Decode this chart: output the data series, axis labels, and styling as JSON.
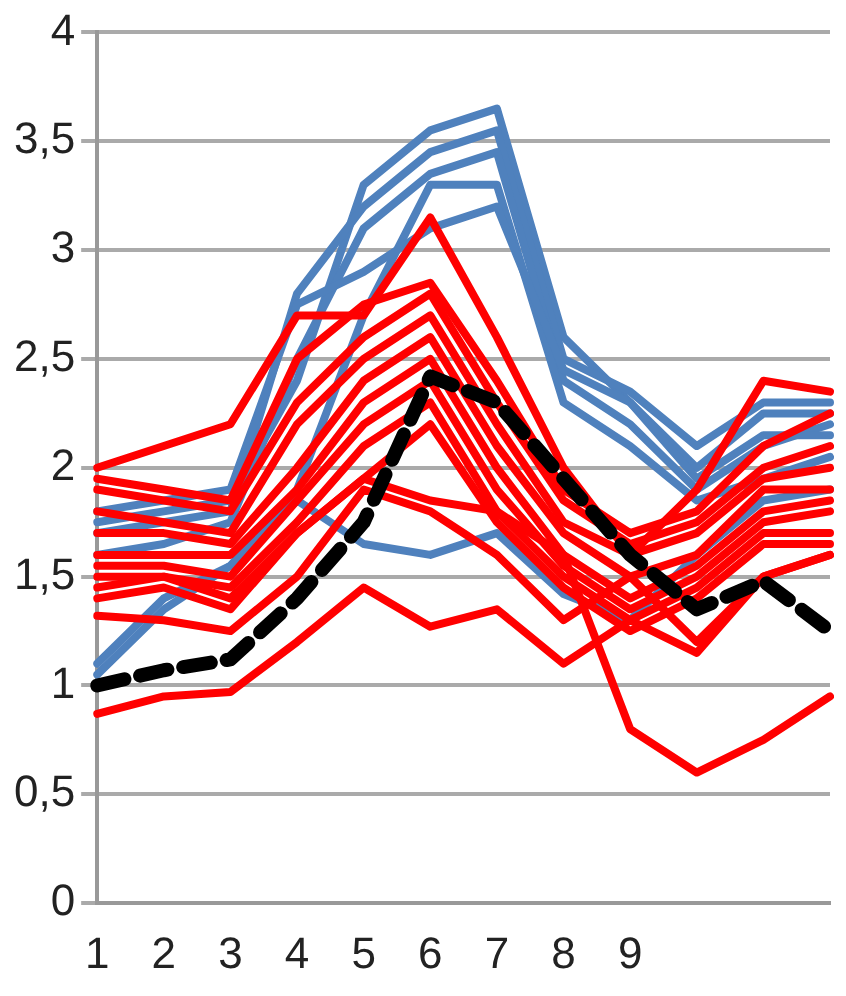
{
  "chart_data": {
    "type": "line",
    "categories": [
      "1",
      "2",
      "3",
      "4",
      "5",
      "6",
      "7",
      "8",
      "9",
      null,
      null,
      null
    ],
    "ylim": [
      0,
      4
    ],
    "yticks": [
      0,
      {
        "value": 0.5,
        "label": "0,5"
      },
      1,
      {
        "value": 1.5,
        "label": "1,5"
      },
      2,
      {
        "value": 2.5,
        "label": "2,5"
      },
      3,
      {
        "value": 3.5,
        "label": "3,5"
      },
      4
    ],
    "grid": "y",
    "legend": false,
    "marker": "none",
    "series": [
      {
        "color": "#4f81bd",
        "values": [
          1.75,
          1.8,
          1.85,
          2.4,
          3.3,
          3.55,
          3.65,
          2.6,
          2.3,
          2.0,
          2.25,
          2.25
        ]
      },
      {
        "color": "#4f81bd",
        "values": [
          1.7,
          1.75,
          1.8,
          2.8,
          3.2,
          3.45,
          3.55,
          2.5,
          2.35,
          2.1,
          2.3,
          2.3
        ]
      },
      {
        "color": "#4f81bd",
        "values": [
          1.6,
          1.65,
          1.75,
          2.5,
          3.1,
          3.35,
          3.45,
          2.4,
          2.2,
          1.9,
          2.1,
          2.2
        ]
      },
      {
        "color": "#4f81bd",
        "values": [
          1.05,
          1.35,
          1.55,
          1.9,
          2.7,
          3.3,
          3.3,
          2.3,
          2.1,
          1.85,
          1.95,
          2.05
        ]
      },
      {
        "color": "#4f81bd",
        "values": [
          1.1,
          1.4,
          1.55,
          1.85,
          1.65,
          1.6,
          1.7,
          1.42,
          1.3,
          1.6,
          1.85,
          1.9
        ]
      },
      {
        "color": "#4f81bd",
        "values": [
          1.8,
          1.85,
          1.9,
          2.75,
          2.9,
          3.1,
          3.2,
          2.45,
          2.3,
          1.95,
          2.15,
          2.15
        ]
      },
      {
        "color": "#ff0000",
        "values": [
          2.0,
          2.1,
          2.2,
          2.7,
          2.7,
          3.15,
          2.6,
          2.0,
          1.6,
          1.9,
          2.4,
          2.35
        ]
      },
      {
        "color": "#ff0000",
        "values": [
          1.95,
          1.9,
          1.85,
          2.5,
          2.75,
          2.85,
          2.4,
          1.9,
          1.7,
          1.8,
          2.1,
          2.25
        ]
      },
      {
        "color": "#ff0000",
        "values": [
          1.9,
          1.85,
          1.8,
          2.3,
          2.6,
          2.8,
          2.3,
          1.85,
          1.65,
          1.75,
          2.0,
          2.1
        ]
      },
      {
        "color": "#ff0000",
        "values": [
          1.8,
          1.75,
          1.7,
          2.2,
          2.5,
          2.7,
          2.2,
          1.75,
          1.6,
          1.7,
          1.95,
          2.0
        ]
      },
      {
        "color": "#ff0000",
        "values": [
          1.7,
          1.7,
          1.65,
          2.0,
          2.4,
          2.6,
          2.1,
          1.7,
          1.5,
          1.6,
          1.9,
          1.9
        ]
      },
      {
        "color": "#ff0000",
        "values": [
          1.6,
          1.6,
          1.6,
          1.9,
          2.3,
          2.5,
          2.0,
          1.6,
          1.4,
          1.55,
          1.8,
          1.85
        ]
      },
      {
        "color": "#ff0000",
        "values": [
          1.55,
          1.55,
          1.5,
          1.85,
          2.2,
          2.4,
          1.9,
          1.55,
          1.35,
          1.5,
          1.75,
          1.8
        ]
      },
      {
        "color": "#ff0000",
        "values": [
          1.5,
          1.5,
          1.45,
          1.75,
          2.1,
          2.3,
          1.8,
          1.5,
          1.3,
          1.45,
          1.7,
          1.7
        ]
      },
      {
        "color": "#ff0000",
        "values": [
          1.45,
          1.5,
          1.4,
          1.7,
          1.95,
          2.2,
          1.75,
          1.45,
          1.25,
          1.4,
          1.65,
          1.65
        ]
      },
      {
        "color": "#ff0000",
        "values": [
          1.4,
          1.45,
          1.35,
          1.7,
          1.95,
          1.85,
          1.8,
          1.6,
          0.8,
          0.6,
          0.75,
          0.95
        ]
      },
      {
        "color": "#ff0000",
        "values": [
          1.32,
          1.3,
          1.25,
          1.5,
          1.9,
          1.8,
          1.6,
          1.3,
          1.5,
          1.2,
          1.5,
          1.6
        ]
      },
      {
        "color": "#ff0000",
        "values": [
          0.87,
          0.95,
          0.97,
          1.2,
          1.45,
          1.27,
          1.35,
          1.1,
          1.3,
          1.15,
          1.5,
          1.6
        ]
      },
      {
        "color": "#000000",
        "line_style": "dashed",
        "values": [
          1.0,
          1.07,
          1.12,
          1.4,
          1.75,
          2.42,
          2.3,
          1.95,
          1.6,
          1.35,
          1.48,
          1.25
        ]
      }
    ]
  }
}
